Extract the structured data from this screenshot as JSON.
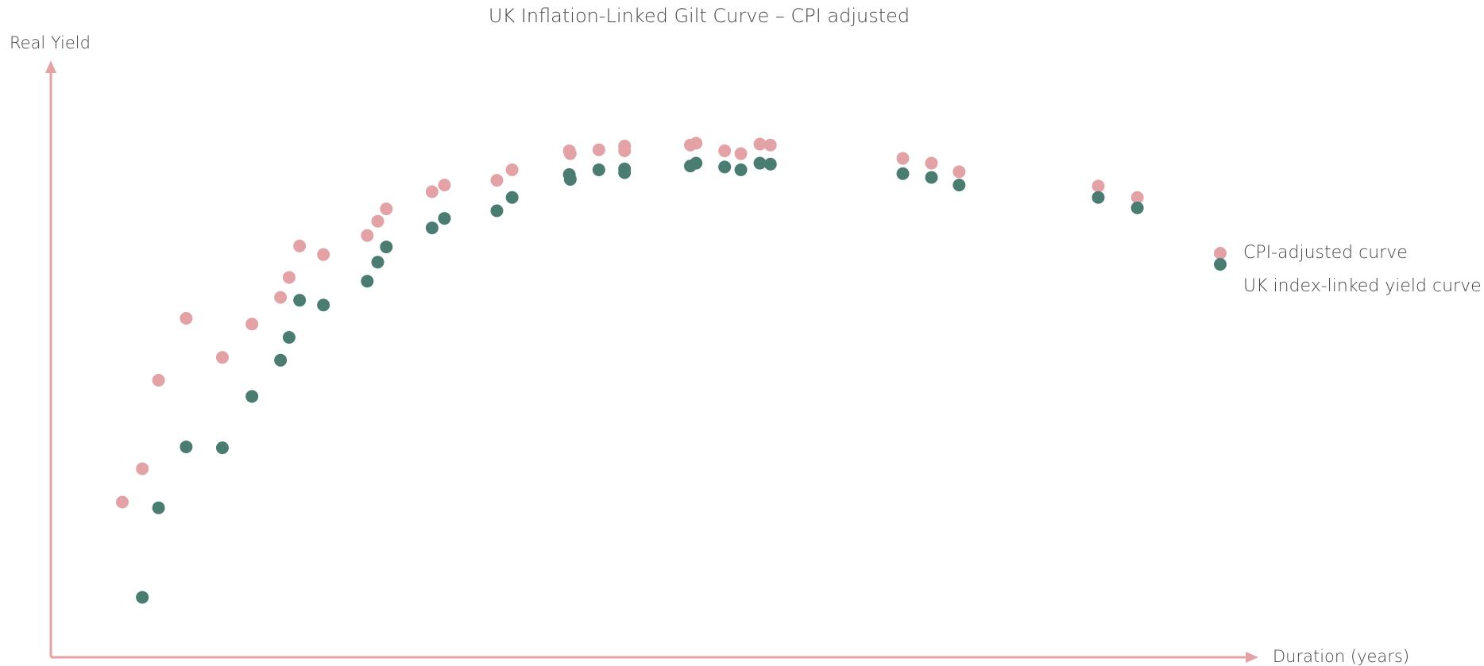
{
  "chart_data": {
    "type": "scatter",
    "title": "UK Inflation-Linked Gilt Curve – CPI adjusted",
    "x_label": "Duration (years)",
    "y_label": "Real Yield",
    "xlim": [
      0,
      1267
    ],
    "ylim": [
      0,
      627
    ],
    "series": [
      {
        "name": "CPI-adjusted curve",
        "color": "#e3a3a6",
        "x": [
          75,
          96,
          113,
          142,
          180,
          211,
          241,
          250,
          261,
          286,
          332,
          343,
          352,
          400,
          413,
          468,
          484,
          544,
          545,
          575,
          602,
          602,
          671,
          677,
          707,
          724,
          744,
          755,
          894,
          924,
          953,
          1099,
          1140
        ],
        "values": [
          163,
          198,
          291,
          356,
          315,
          350,
          378,
          399,
          432,
          423,
          443,
          458,
          471,
          489,
          496,
          501,
          512,
          532,
          529,
          533,
          537,
          532,
          538,
          540,
          532,
          529,
          539,
          538,
          524,
          519,
          510,
          495,
          483
        ]
      },
      {
        "name": "UK index-linked yield curve",
        "color": "#4a7c72",
        "x": [
          96,
          113,
          142,
          180,
          211,
          241,
          250,
          261,
          286,
          332,
          343,
          352,
          400,
          413,
          468,
          484,
          544,
          545,
          575,
          602,
          602,
          671,
          677,
          707,
          724,
          744,
          755,
          894,
          924,
          953,
          1099,
          1140
        ],
        "values": [
          63,
          157,
          221,
          220,
          274,
          312,
          336,
          375,
          370,
          395,
          415,
          431,
          451,
          461,
          469,
          483,
          507,
          502,
          512,
          513,
          509,
          516,
          519,
          515,
          512,
          519,
          518,
          508,
          504,
          496,
          483,
          472
        ]
      }
    ]
  }
}
